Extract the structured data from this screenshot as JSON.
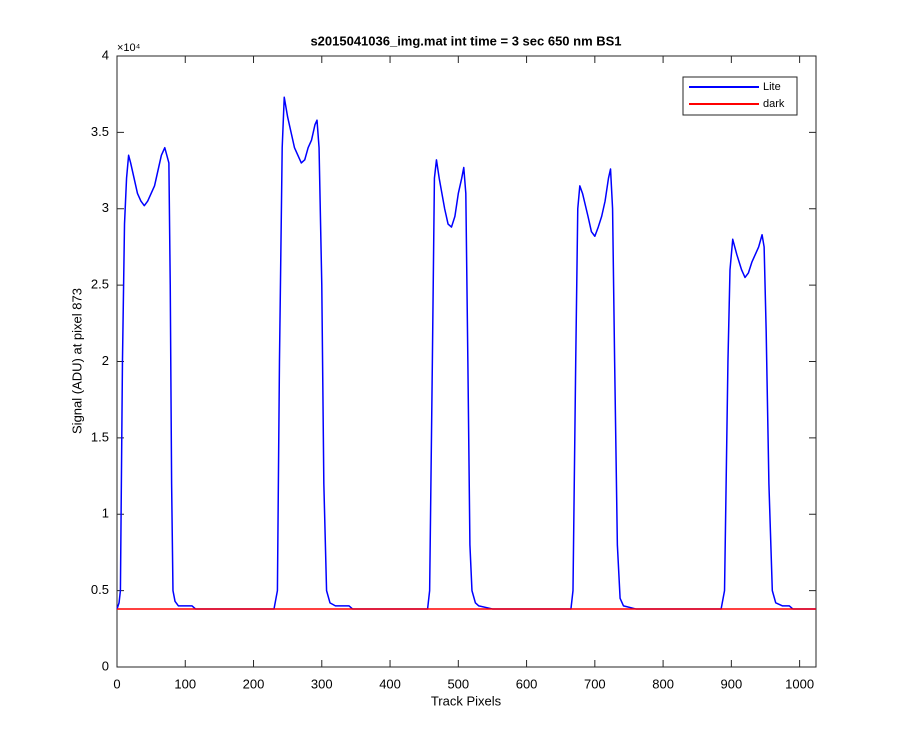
{
  "chart_data": {
    "type": "line",
    "title": "s2015041036_img.mat int time = 3 sec  650 nm BS1",
    "x_label": "Track Pixels",
    "y_label": "Signal (ADU) at pixel 873",
    "y_multiplier": "×10⁴",
    "xlim": [
      0,
      1024
    ],
    "ylim": [
      0,
      40000
    ],
    "xticks": [
      0,
      100,
      200,
      300,
      400,
      500,
      600,
      700,
      800,
      900,
      1000
    ],
    "yticks": [
      {
        "value": 0,
        "label": "0"
      },
      {
        "value": 5000,
        "label": "0.5"
      },
      {
        "value": 10000,
        "label": "1"
      },
      {
        "value": 15000,
        "label": "1.5"
      },
      {
        "value": 20000,
        "label": "2"
      },
      {
        "value": 25000,
        "label": "2.5"
      },
      {
        "value": 30000,
        "label": "3"
      },
      {
        "value": 35000,
        "label": "3.5"
      },
      {
        "value": 40000,
        "label": "4"
      }
    ],
    "legend_position": "upper-right",
    "series": [
      {
        "name": "Lite",
        "color": "#0000ff",
        "x": [
          0,
          3,
          5,
          8,
          11,
          14,
          17,
          20,
          25,
          30,
          35,
          40,
          45,
          50,
          55,
          60,
          65,
          70,
          73,
          76,
          78,
          80,
          82,
          85,
          90,
          110,
          115,
          230,
          235,
          238,
          242,
          245,
          250,
          255,
          260,
          265,
          270,
          275,
          280,
          285,
          290,
          293,
          296,
          300,
          303,
          307,
          312,
          320,
          340,
          345,
          455,
          458,
          462,
          465,
          468,
          472,
          480,
          485,
          490,
          495,
          500,
          505,
          508,
          511,
          514,
          517,
          520,
          525,
          530,
          550,
          665,
          668,
          672,
          675,
          678,
          682,
          690,
          695,
          700,
          705,
          710,
          715,
          720,
          723,
          726,
          729,
          733,
          737,
          742,
          760,
          885,
          890,
          895,
          898,
          902,
          908,
          915,
          920,
          925,
          930,
          940,
          945,
          948,
          951,
          955,
          960,
          965,
          975,
          985,
          990,
          1024
        ],
        "values": [
          3800,
          4200,
          5000,
          20000,
          29000,
          32000,
          33500,
          33000,
          32000,
          31000,
          30500,
          30200,
          30500,
          31000,
          31500,
          32500,
          33500,
          34000,
          33500,
          33000,
          25000,
          12000,
          5000,
          4300,
          4000,
          4000,
          3800,
          3800,
          5000,
          20000,
          34000,
          37300,
          36000,
          35000,
          34000,
          33500,
          33000,
          33200,
          34000,
          34500,
          35500,
          35800,
          34000,
          25000,
          12000,
          5000,
          4200,
          4000,
          4000,
          3800,
          3800,
          5000,
          20000,
          32000,
          33200,
          32000,
          30000,
          29000,
          28800,
          29500,
          31000,
          32000,
          32700,
          31000,
          20000,
          8000,
          5000,
          4200,
          4000,
          3800,
          3800,
          5000,
          20000,
          30000,
          31500,
          31000,
          29500,
          28500,
          28200,
          28800,
          29500,
          30500,
          32000,
          32600,
          30000,
          20000,
          8000,
          4500,
          4000,
          3800,
          3800,
          5000,
          20000,
          26000,
          28000,
          27000,
          26000,
          25500,
          25800,
          26500,
          27500,
          28300,
          27500,
          22000,
          12000,
          5000,
          4200,
          4000,
          4000,
          3800,
          3800
        ]
      },
      {
        "name": "dark",
        "color": "#ff0000",
        "x": [
          0,
          1024
        ],
        "values": [
          3800,
          3800
        ]
      }
    ]
  }
}
